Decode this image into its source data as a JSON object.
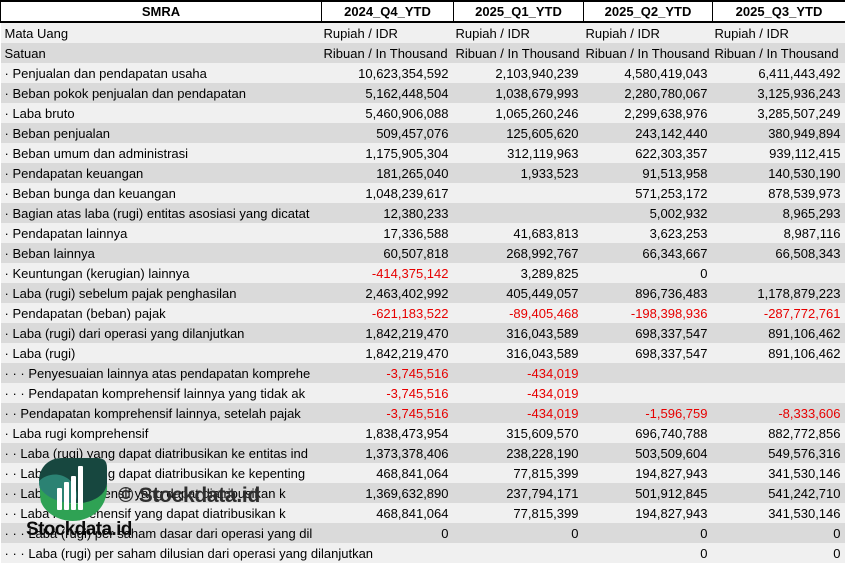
{
  "header": {
    "ticker": "SMRA",
    "columns": [
      "2024_Q4_YTD",
      "2025_Q1_YTD",
      "2025_Q2_YTD",
      "2025_Q3_YTD"
    ]
  },
  "rows": [
    {
      "label": "Mata Uang",
      "align": "left",
      "values": [
        "Rupiah / IDR",
        "Rupiah / IDR",
        "Rupiah / IDR",
        "Rupiah / IDR"
      ]
    },
    {
      "label": "Satuan",
      "align": "left",
      "values": [
        "Ribuan / In Thousand",
        "Ribuan / In Thousand",
        "Ribuan / In Thousand",
        "Ribuan / In Thousand"
      ]
    },
    {
      "label": "· Penjualan dan pendapatan usaha",
      "values": [
        "10,623,354,592",
        "2,103,940,239",
        "4,580,419,043",
        "6,411,443,492"
      ]
    },
    {
      "label": "· Beban pokok penjualan dan pendapatan",
      "values": [
        "5,162,448,504",
        "1,038,679,993",
        "2,280,780,067",
        "3,125,936,243"
      ]
    },
    {
      "label": "· Laba bruto",
      "values": [
        "5,460,906,088",
        "1,065,260,246",
        "2,299,638,976",
        "3,285,507,249"
      ]
    },
    {
      "label": "· Beban penjualan",
      "values": [
        "509,457,076",
        "125,605,620",
        "243,142,440",
        "380,949,894"
      ]
    },
    {
      "label": "· Beban umum dan administrasi",
      "values": [
        "1,175,905,304",
        "312,119,963",
        "622,303,357",
        "939,112,415"
      ]
    },
    {
      "label": "· Pendapatan keuangan",
      "values": [
        "181,265,040",
        "1,933,523",
        "91,513,958",
        "140,530,190"
      ]
    },
    {
      "label": "· Beban bunga dan keuangan",
      "values": [
        "1,048,239,617",
        "",
        "571,253,172",
        "878,539,973"
      ]
    },
    {
      "label": "· Bagian atas laba (rugi) entitas asosiasi yang dicatat",
      "values": [
        "12,380,233",
        "",
        "5,002,932",
        "8,965,293"
      ]
    },
    {
      "label": "· Pendapatan lainnya",
      "values": [
        "17,336,588",
        "41,683,813",
        "3,623,253",
        "8,987,116"
      ]
    },
    {
      "label": "· Beban lainnya",
      "values": [
        "60,507,818",
        "268,992,767",
        "66,343,667",
        "66,508,343"
      ]
    },
    {
      "label": "· Keuntungan (kerugian) lainnya",
      "values": [
        "-414,375,142",
        "3,289,825",
        "0",
        ""
      ]
    },
    {
      "label": "· Laba (rugi) sebelum pajak penghasilan",
      "values": [
        "2,463,402,992",
        "405,449,057",
        "896,736,483",
        "1,178,879,223"
      ]
    },
    {
      "label": "· Pendapatan (beban) pajak",
      "values": [
        "-621,183,522",
        "-89,405,468",
        "-198,398,936",
        "-287,772,761"
      ]
    },
    {
      "label": "· Laba (rugi) dari operasi yang dilanjutkan",
      "values": [
        "1,842,219,470",
        "316,043,589",
        "698,337,547",
        "891,106,462"
      ]
    },
    {
      "label": "· Laba (rugi)",
      "values": [
        "1,842,219,470",
        "316,043,589",
        "698,337,547",
        "891,106,462"
      ]
    },
    {
      "label": "· · · Penyesuaian lainnya atas pendapatan komprehe",
      "values": [
        "-3,745,516",
        "-434,019",
        "",
        ""
      ]
    },
    {
      "label": "· · · Pendapatan komprehensif lainnya yang tidak ak",
      "values": [
        "-3,745,516",
        "-434,019",
        "",
        ""
      ]
    },
    {
      "label": "· · Pendapatan komprehensif lainnya, setelah pajak",
      "values": [
        "-3,745,516",
        "-434,019",
        "-1,596,759",
        "-8,333,606"
      ]
    },
    {
      "label": "· Laba rugi komprehensif",
      "values": [
        "1,838,473,954",
        "315,609,570",
        "696,740,788",
        "882,772,856"
      ]
    },
    {
      "label": "· · Laba (rugi) yang dapat diatribusikan ke entitas ind",
      "values": [
        "1,373,378,406",
        "238,228,190",
        "503,509,604",
        "549,576,316"
      ]
    },
    {
      "label": "· · Laba (rugi) yang dapat diatribusikan ke kepenting",
      "values": [
        "468,841,064",
        "77,815,399",
        "194,827,943",
        "341,530,146"
      ]
    },
    {
      "label": "· · Laba komprehensif yang dapat diatribusikan k",
      "values": [
        "1,369,632,890",
        "237,794,171",
        "501,912,845",
        "541,242,710"
      ]
    },
    {
      "label": "· · Laba komprehensif yang dapat diatribusikan k",
      "values": [
        "468,841,064",
        "77,815,399",
        "194,827,943",
        "341,530,146"
      ]
    },
    {
      "label": "· · · Laba (rugi) per saham dasar dari operasi yang dil",
      "values": [
        "0",
        "0",
        "0",
        "0"
      ]
    },
    {
      "label": "· · · Laba (rugi) per saham dilusian dari operasi yang dilanjutkan",
      "overflow": true,
      "values": [
        "",
        "",
        "0",
        "0"
      ]
    }
  ],
  "watermark": {
    "wordmark_text": "Stockdata.id",
    "copyright_text": "© Stockdata.id",
    "logo_colors": {
      "dark_teal": "#17473f",
      "teal": "#2b8273",
      "green": "#2fa254",
      "bars": "#ffffff"
    }
  },
  "colors": {
    "row_light": "#f0f0f0",
    "row_dark": "#dadada",
    "negative_value": "#e60000",
    "header_border": "#000000"
  }
}
